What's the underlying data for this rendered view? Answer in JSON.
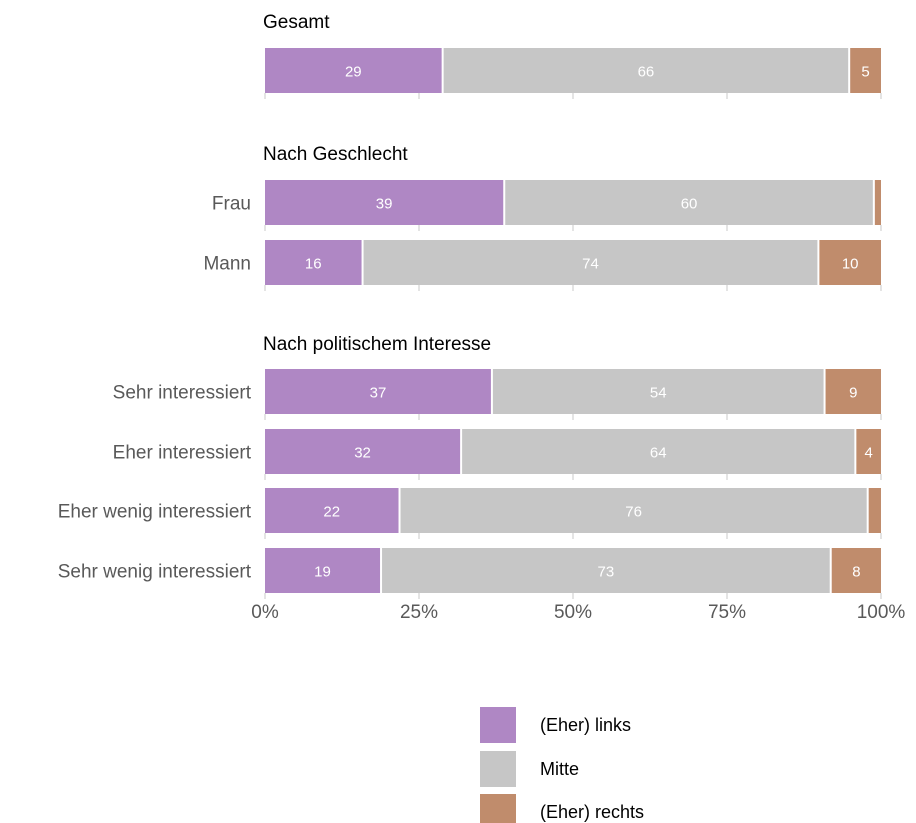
{
  "chart_data": {
    "type": "bar",
    "orientation": "horizontal",
    "stacked": true,
    "xlim": [
      0,
      100
    ],
    "x_ticks": [
      "0%",
      "25%",
      "50%",
      "75%",
      "100%"
    ],
    "grid": false,
    "legend_position": "bottom",
    "series": [
      {
        "name": "(Eher) links",
        "color": "#af87c4"
      },
      {
        "name": "Mitte",
        "color": "#c6c6c6"
      },
      {
        "name": "(Eher) rechts",
        "color": "#c08c6c"
      }
    ],
    "panels": [
      {
        "title": "Gesamt",
        "rows": [
          {
            "label": "",
            "values": [
              29,
              66,
              5
            ],
            "labels": [
              "29",
              "66",
              "5"
            ]
          }
        ]
      },
      {
        "title": "Nach Geschlecht",
        "rows": [
          {
            "label": "Frau",
            "values": [
              39,
              60,
              1
            ],
            "labels": [
              "39",
              "60",
              ""
            ]
          },
          {
            "label": "Mann",
            "values": [
              16,
              74,
              10
            ],
            "labels": [
              "16",
              "74",
              "10"
            ]
          }
        ]
      },
      {
        "title": "Nach politischem Interesse",
        "rows": [
          {
            "label": "Sehr interessiert",
            "values": [
              37,
              54,
              9
            ],
            "labels": [
              "37",
              "54",
              "9"
            ]
          },
          {
            "label": "Eher interessiert",
            "values": [
              32,
              64,
              4
            ],
            "labels": [
              "32",
              "64",
              "4"
            ]
          },
          {
            "label": "Eher wenig interessiert",
            "values": [
              22,
              76,
              2
            ],
            "labels": [
              "22",
              "76",
              ""
            ]
          },
          {
            "label": "Sehr wenig interessiert",
            "values": [
              19,
              73,
              8
            ],
            "labels": [
              "19",
              "73",
              "8"
            ]
          }
        ]
      }
    ]
  }
}
